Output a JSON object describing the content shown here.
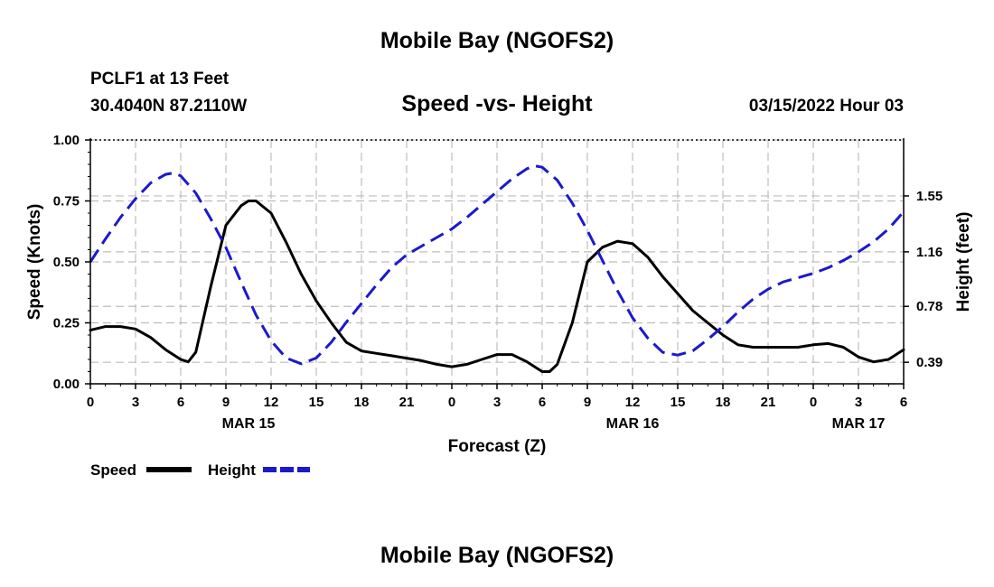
{
  "header": {
    "title": "Mobile Bay (NGOFS2)",
    "station": "PCLF1 at 13 Feet",
    "coords": "30.4040N  87.2110W",
    "subtitle": "Speed -vs- Height",
    "runtime": "03/15/2022 Hour 03"
  },
  "footer": {
    "title": "Mobile Bay (NGOFS2)"
  },
  "chart_data": {
    "type": "line",
    "title": "Speed -vs- Height",
    "xlabel": "Forecast (Z)",
    "ylabel": "Speed (Knots)",
    "y2label": "Height (feet)",
    "x_hours_range": [
      0,
      54
    ],
    "x_tick_hours": [
      0,
      3,
      6,
      9,
      12,
      15,
      18,
      21,
      24,
      27,
      30,
      33,
      36,
      39,
      42,
      45,
      48,
      51,
      54
    ],
    "x_tick_labels": [
      "0",
      "3",
      "6",
      "9",
      "12",
      "15",
      "18",
      "21",
      "0",
      "3",
      "6",
      "9",
      "12",
      "15",
      "18",
      "21",
      "0",
      "3",
      "6"
    ],
    "date_labels": [
      {
        "hour": 10.5,
        "label": "MAR 15"
      },
      {
        "hour": 36,
        "label": "MAR 16"
      },
      {
        "hour": 51,
        "label": "MAR 17"
      }
    ],
    "ylim": [
      0,
      1
    ],
    "y_ticks": [
      0,
      0.25,
      0.5,
      0.75,
      1.0
    ],
    "y_tick_labels": [
      "0.00",
      "0.25",
      "0.50",
      "0.75",
      "1.00"
    ],
    "y2_ticks": [
      0.39,
      0.78,
      1.16,
      1.55
    ],
    "y2_tick_labels": [
      "0.39",
      "0.78",
      "1.16",
      "1.55"
    ],
    "y2lim": [
      0.24,
      1.94
    ],
    "grid": true,
    "series": [
      {
        "name": "Speed",
        "axis": "left",
        "color": "#000000",
        "style": "solid",
        "x": [
          0,
          1,
          2,
          3,
          4,
          5,
          6,
          6.5,
          7,
          8,
          9,
          10,
          10.5,
          11,
          12,
          13,
          14,
          15,
          16,
          17,
          18,
          19,
          20,
          21,
          22,
          23,
          24,
          25,
          26,
          27,
          28,
          29,
          30,
          30.5,
          31,
          32,
          33,
          34,
          35,
          36,
          37,
          38,
          39,
          40,
          41,
          42,
          43,
          44,
          45,
          46,
          47,
          48,
          49,
          50,
          51,
          52,
          53,
          54
        ],
        "values": [
          0.22,
          0.235,
          0.235,
          0.225,
          0.19,
          0.14,
          0.1,
          0.09,
          0.13,
          0.4,
          0.65,
          0.73,
          0.75,
          0.75,
          0.7,
          0.58,
          0.45,
          0.34,
          0.25,
          0.17,
          0.135,
          0.125,
          0.115,
          0.105,
          0.095,
          0.08,
          0.07,
          0.08,
          0.1,
          0.12,
          0.12,
          0.09,
          0.05,
          0.05,
          0.08,
          0.25,
          0.5,
          0.56,
          0.585,
          0.575,
          0.52,
          0.44,
          0.37,
          0.3,
          0.25,
          0.2,
          0.16,
          0.15,
          0.15,
          0.15,
          0.15,
          0.16,
          0.165,
          0.15,
          0.11,
          0.09,
          0.1,
          0.14
        ]
      },
      {
        "name": "Height",
        "axis": "right",
        "color": "#1a1acc",
        "style": "dashed",
        "x": [
          0,
          1,
          2,
          3,
          4,
          5,
          5.5,
          6,
          7,
          8,
          9,
          10,
          11,
          12,
          13,
          14,
          15,
          16,
          17,
          18,
          19,
          20,
          21,
          22,
          23,
          24,
          25,
          26,
          27,
          28,
          29,
          29.5,
          30,
          31,
          32,
          33,
          34,
          35,
          36,
          37,
          38,
          39,
          40,
          41,
          42,
          43,
          44,
          45,
          46,
          47,
          48,
          49,
          50,
          51,
          52,
          53,
          54
        ],
        "values": [
          1.09,
          1.25,
          1.4,
          1.53,
          1.64,
          1.7,
          1.71,
          1.69,
          1.57,
          1.39,
          1.19,
          0.95,
          0.72,
          0.54,
          0.42,
          0.38,
          0.42,
          0.53,
          0.67,
          0.8,
          0.93,
          1.05,
          1.14,
          1.2,
          1.26,
          1.32,
          1.4,
          1.49,
          1.58,
          1.67,
          1.74,
          1.76,
          1.75,
          1.66,
          1.5,
          1.31,
          1.1,
          0.89,
          0.7,
          0.56,
          0.46,
          0.44,
          0.47,
          0.55,
          0.64,
          0.74,
          0.83,
          0.9,
          0.95,
          0.98,
          1.01,
          1.05,
          1.1,
          1.16,
          1.23,
          1.32,
          1.44
        ]
      }
    ]
  }
}
